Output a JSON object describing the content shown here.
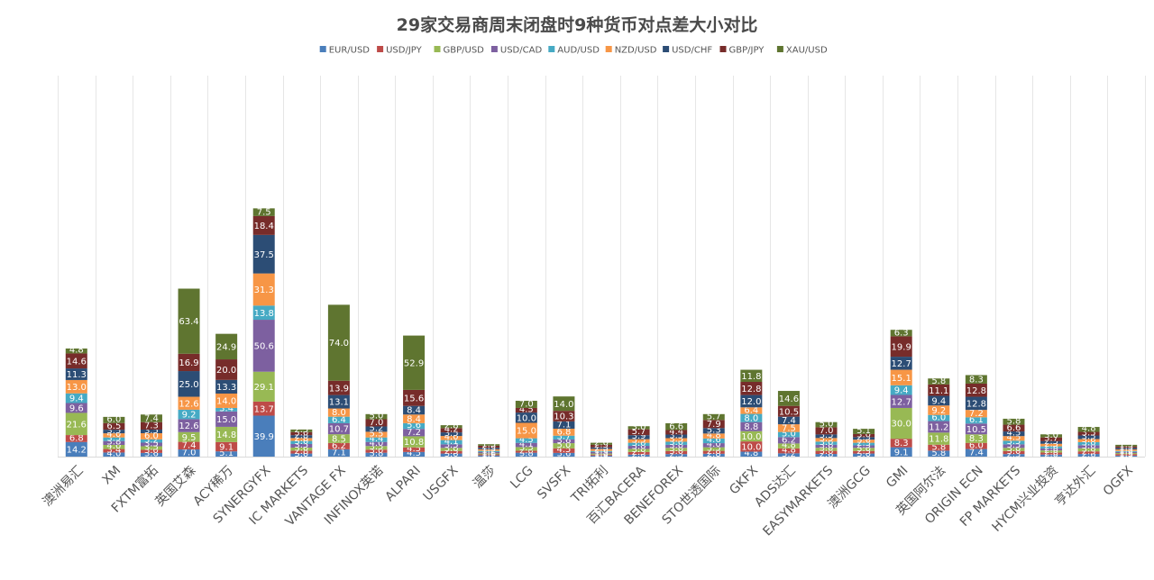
{
  "colors": {
    "EUR/USD": "#4a7ebb",
    "USD/JPY": "#be4b48",
    "GBP/USD": "#98b954",
    "USD/CAD": "#7d60a0",
    "AUD/USD": "#46aac4",
    "NZD/USD": "#f79646",
    "USD/CHF": "#2c4d75",
    "GBP/JPY": "#772c2a",
    "XAU/USD": "#5f7530"
  },
  "chart_data": {
    "type": "bar",
    "stacked": true,
    "title": "29家交易商周末闭盘时9种货币对点差大小对比",
    "legend_position": "top",
    "grid": true,
    "ylim": [
      0,
      300
    ],
    "categories": [
      "澳洲易汇",
      "XM",
      "FXTM富拓",
      "英国艾森",
      "ACY稀万",
      "SYNERGYFX",
      "IC MARKETS",
      "VANTAGE FX",
      "INFINOX英诺",
      "ALPARI",
      "USGFX",
      "温莎",
      "LCG",
      "SVSFX",
      "TRI拓利",
      "百汇BACERA",
      "BENEFOREX",
      "STO世透国际",
      "GKFX",
      "ADS达汇",
      "EASYMARKETS",
      "澳洲GCG",
      "GMI",
      "英国阿尔法",
      "ORIGIN ECN",
      "FP MARKETS",
      "HYCM兴业投资",
      "亨达外汇",
      "OGFX"
    ],
    "series": [
      {
        "name": "EUR/USD",
        "values": [
          14.2,
          4.0,
          3.6,
          7.0,
          5.1,
          39.9,
          3.0,
          7.1,
          3.8,
          4.5,
          3.0,
          1.2,
          3.8,
          3.6,
          1.0,
          2.0,
          2.5,
          2.8,
          4.8,
          3.2,
          2.6,
          3.0,
          9.1,
          5.8,
          7.4,
          2.5,
          2.0,
          2.6,
          1.0
        ]
      },
      {
        "name": "USD/JPY",
        "values": [
          6.8,
          3.4,
          3.0,
          7.4,
          9.1,
          13.7,
          2.8,
          6.2,
          3.0,
          4.5,
          2.5,
          1.0,
          2.0,
          4.5,
          1.0,
          2.5,
          3.0,
          2.8,
          10.0,
          4.8,
          3.0,
          2.5,
          8.3,
          5.8,
          6.0,
          3.0,
          2.0,
          2.5,
          1.5
        ]
      },
      {
        "name": "GBP/USD",
        "values": [
          21.6,
          4.0,
          3.5,
          9.5,
          14.8,
          29.1,
          3.0,
          8.5,
          3.5,
          10.8,
          3.0,
          1.0,
          3.5,
          5.0,
          1.0,
          3.0,
          3.0,
          3.5,
          10.0,
          4.8,
          3.0,
          3.0,
          30.0,
          11.8,
          8.3,
          3.0,
          2.0,
          3.0,
          1.0
        ]
      },
      {
        "name": "USD/CAD",
        "values": [
          9.6,
          3.8,
          3.5,
          12.6,
          15.0,
          50.6,
          3.5,
          10.7,
          4.0,
          7.2,
          3.5,
          1.2,
          4.1,
          3.6,
          1.5,
          3.0,
          3.0,
          4.0,
          8.8,
          6.2,
          3.0,
          2.5,
          12.7,
          11.2,
          10.5,
          3.5,
          2.0,
          3.0,
          1.0
        ]
      },
      {
        "name": "AUD/USD",
        "values": [
          9.4,
          3.5,
          3.2,
          9.2,
          3.4,
          13.8,
          3.0,
          6.4,
          4.4,
          5.6,
          4.1,
          1.2,
          4.5,
          3.7,
          1.0,
          3.0,
          3.0,
          4.6,
          8.0,
          5.0,
          3.0,
          2.5,
          9.4,
          6.0,
          6.1,
          3.5,
          2.0,
          3.0,
          1.0
        ]
      },
      {
        "name": "NZD/USD",
        "values": [
          13.0,
          4.0,
          6.0,
          12.6,
          14.0,
          31.3,
          2.8,
          8.0,
          5.5,
          8.4,
          4.0,
          1.5,
          15.0,
          6.8,
          2.0,
          3.5,
          3.5,
          4.8,
          6.4,
          7.5,
          3.5,
          3.0,
          15.1,
          9.2,
          7.2,
          4.5,
          2.5,
          3.0,
          1.5
        ]
      },
      {
        "name": "USD/CHF",
        "values": [
          11.3,
          3.5,
          3.5,
          25.0,
          13.3,
          37.5,
          2.8,
          13.1,
          5.2,
          8.4,
          3.5,
          1.5,
          10.0,
          7.1,
          1.5,
          3.9,
          3.5,
          5.3,
          12.0,
          7.4,
          3.5,
          2.5,
          12.7,
          9.4,
          12.8,
          4.5,
          2.5,
          3.5,
          1.5
        ]
      },
      {
        "name": "GBP/JPY",
        "values": [
          14.6,
          6.5,
          7.3,
          16.9,
          20.0,
          18.4,
          3.0,
          13.9,
          7.0,
          15.6,
          4.2,
          2.0,
          4.5,
          10.3,
          2.5,
          5.7,
          4.4,
          7.9,
          12.8,
          10.5,
          7.0,
          3.0,
          19.9,
          11.1,
          12.8,
          6.6,
          3.7,
          3.5,
          1.5
        ]
      },
      {
        "name": "XAU/USD",
        "values": [
          4.8,
          6.0,
          7.4,
          63.4,
          24.9,
          7.5,
          2.5,
          74.0,
          5.0,
          52.9,
          2.8,
          1.5,
          7.0,
          14.0,
          2.0,
          3.0,
          6.6,
          5.7,
          11.8,
          14.6,
          5.0,
          5.1,
          6.3,
          5.8,
          8.3,
          5.8,
          3.0,
          4.8,
          1.5
        ]
      }
    ]
  }
}
